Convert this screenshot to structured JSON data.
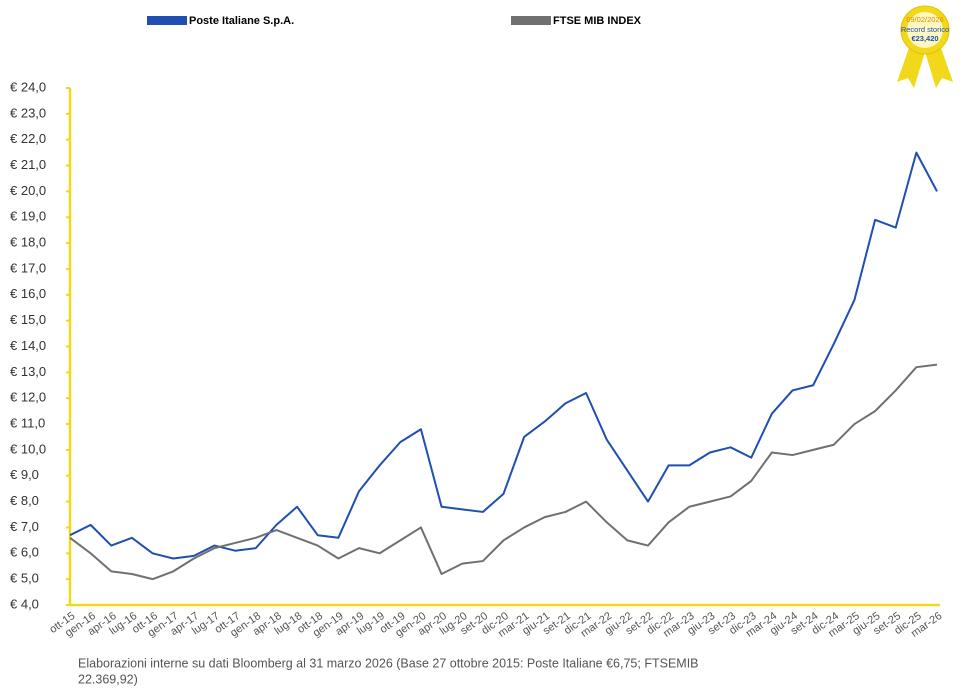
{
  "chart_data": {
    "type": "line",
    "series": [
      {
        "name": "Poste Italiane S.p.A.",
        "color": "#1f4fb0",
        "values": [
          6.7,
          7.1,
          6.3,
          6.6,
          6.0,
          5.8,
          5.9,
          6.3,
          6.1,
          6.2,
          7.1,
          7.8,
          6.7,
          6.6,
          8.4,
          9.4,
          10.3,
          10.8,
          7.8,
          7.7,
          7.6,
          8.3,
          10.5,
          11.1,
          11.8,
          12.2,
          10.4,
          9.2,
          8.0,
          9.4,
          9.4,
          9.9,
          10.1,
          9.7,
          11.4,
          12.3,
          12.5,
          14.1,
          15.8,
          18.9,
          18.6,
          21.5,
          20.0
        ]
      },
      {
        "name": "FTSE MIB INDEX",
        "color": "#707070",
        "values": [
          6.6,
          6.0,
          5.3,
          5.2,
          5.0,
          5.3,
          5.8,
          6.2,
          6.4,
          6.6,
          6.9,
          6.6,
          6.3,
          5.8,
          6.2,
          6.0,
          6.5,
          7.0,
          5.2,
          5.6,
          5.7,
          6.5,
          7.0,
          7.4,
          7.6,
          8.0,
          7.2,
          6.5,
          6.3,
          7.2,
          7.8,
          8.0,
          8.2,
          8.8,
          9.9,
          9.8,
          10.0,
          10.2,
          11.0,
          11.5,
          12.3,
          13.2,
          13.3
        ]
      }
    ],
    "categories": [
      "ott-15",
      "gen-16",
      "apr-16",
      "lug-16",
      "ott-16",
      "gen-17",
      "apr-17",
      "lug-17",
      "ott-17",
      "gen-18",
      "apr-18",
      "lug-18",
      "ott-18",
      "gen-19",
      "apr-19",
      "lug-19",
      "ott-19",
      "gen-20",
      "apr-20",
      "lug-20",
      "set-20",
      "dic-20",
      "mar-21",
      "giu-21",
      "set-21",
      "dic-21",
      "mar-22",
      "giu-22",
      "set-22",
      "dic-22",
      "mar-23",
      "giu-23",
      "set-23",
      "dic-23",
      "mar-24",
      "giu-24",
      "set-24",
      "dic-24",
      "mar-25",
      "giu-25",
      "set-25",
      "dic-25",
      "mar-26"
    ],
    "ylim": [
      4,
      24
    ],
    "yticks": [
      {
        "value": 4,
        "label": "€ 4,0"
      },
      {
        "value": 5,
        "label": "€ 5,0"
      },
      {
        "value": 6,
        "label": "€ 6,0"
      },
      {
        "value": 7,
        "label": "€ 7,0"
      },
      {
        "value": 8,
        "label": "€ 8,0"
      },
      {
        "value": 9,
        "label": "€ 9,0"
      },
      {
        "value": 10,
        "label": "€ 10,0"
      },
      {
        "value": 11,
        "label": "€ 11,0"
      },
      {
        "value": 12,
        "label": "€ 12,0"
      },
      {
        "value": 13,
        "label": "€ 13,0"
      },
      {
        "value": 14,
        "label": "€ 14,0"
      },
      {
        "value": 15,
        "label": "€ 15,0"
      },
      {
        "value": 16,
        "label": "€ 16,0"
      },
      {
        "value": 17,
        "label": "€ 17,0"
      },
      {
        "value": 18,
        "label": "€ 18,0"
      },
      {
        "value": 19,
        "label": "€ 19,0"
      },
      {
        "value": 20,
        "label": "€ 20,0"
      },
      {
        "value": 21,
        "label": "€ 21,0"
      },
      {
        "value": 22,
        "label": "€ 22,0"
      },
      {
        "value": 23,
        "label": "€ 23,0"
      },
      {
        "value": 24,
        "label": "€ 24,0"
      }
    ],
    "axis_color": "#f2d81a",
    "badge": {
      "date": "09/02/2026",
      "text": "Record storico",
      "value": "€23,420"
    },
    "note": [
      "Elaborazioni interne su dati Bloomberg al 31 marzo 2026 (Base 27 ottobre 2015: Poste Italiane €6,75; FTSEMIB",
      "22.369,92)"
    ]
  }
}
